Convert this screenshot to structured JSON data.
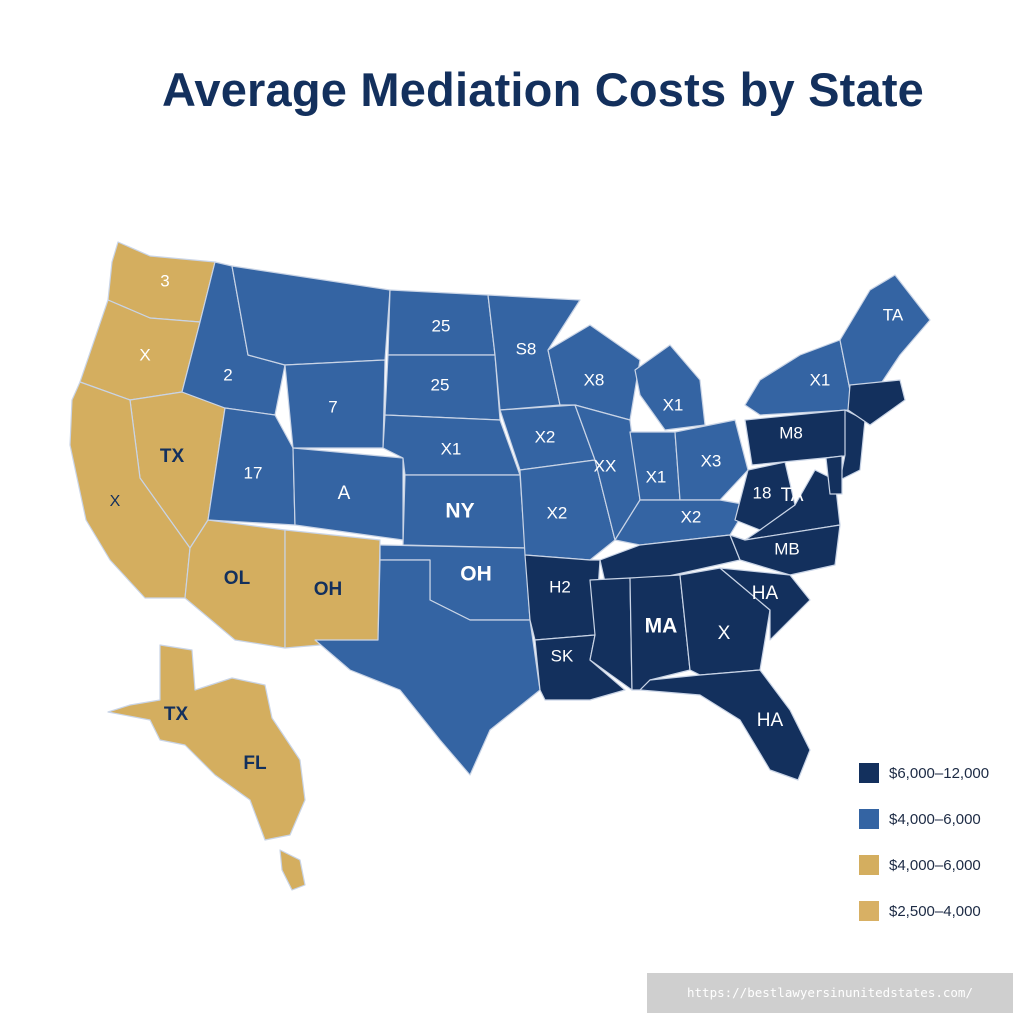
{
  "title": "Average Mediation Costs by State",
  "colors": {
    "tier_dark": "#13305d",
    "tier_mid": "#3464a3",
    "tier_gold": "#d4ae5f",
    "tier_gold_light": "#d8b064",
    "background": "#ffffff"
  },
  "regions": [
    {
      "label": "3",
      "tier": "gold"
    },
    {
      "label": "X",
      "tier": "gold"
    },
    {
      "label": "TX",
      "tier": "gold"
    },
    {
      "label": "X",
      "tier": "gold"
    },
    {
      "label": "OL",
      "tier": "gold"
    },
    {
      "label": "OH",
      "tier": "gold"
    },
    {
      "label": "2",
      "tier": "mid"
    },
    {
      "label": "7",
      "tier": "mid"
    },
    {
      "label": "17",
      "tier": "mid"
    },
    {
      "label": "A",
      "tier": "mid"
    },
    {
      "label": "25",
      "tier": "mid"
    },
    {
      "label": "25",
      "tier": "mid"
    },
    {
      "label": "X1",
      "tier": "mid"
    },
    {
      "label": "NY",
      "tier": "mid"
    },
    {
      "label": "OH",
      "tier": "mid"
    },
    {
      "label": "S8",
      "tier": "mid"
    },
    {
      "label": "X2",
      "tier": "mid"
    },
    {
      "label": "X2",
      "tier": "mid"
    },
    {
      "label": "X8",
      "tier": "mid"
    },
    {
      "label": "XX",
      "tier": "mid"
    },
    {
      "label": "X1",
      "tier": "mid"
    },
    {
      "label": "X1",
      "tier": "mid"
    },
    {
      "label": "X3",
      "tier": "mid"
    },
    {
      "label": "X2",
      "tier": "mid"
    },
    {
      "label": "X1",
      "tier": "mid"
    },
    {
      "label": "TA",
      "tier": "mid"
    },
    {
      "label": "M8",
      "tier": "dark"
    },
    {
      "label": "18",
      "tier": "dark"
    },
    {
      "label": "TA",
      "tier": "dark"
    },
    {
      "label": "MB",
      "tier": "dark"
    },
    {
      "label": "H2",
      "tier": "dark"
    },
    {
      "label": "SK",
      "tier": "dark"
    },
    {
      "label": "MA",
      "tier": "dark"
    },
    {
      "label": "X",
      "tier": "dark"
    },
    {
      "label": "HA",
      "tier": "dark"
    },
    {
      "label": "HA",
      "tier": "dark"
    },
    {
      "label": "TX",
      "tier": "gold"
    },
    {
      "label": "FL",
      "tier": "gold"
    }
  ],
  "legend": [
    {
      "label": "$6,000–12,000",
      "color": "#13305d"
    },
    {
      "label": "$4,000–6,000",
      "color": "#3464a3"
    },
    {
      "label": "$4,000–6,000",
      "color": "#d4ae5f"
    },
    {
      "label": "$2,500–4,000",
      "color": "#d8b064"
    }
  ],
  "source_url": "https://bestlawyersinunitedstates.com/"
}
